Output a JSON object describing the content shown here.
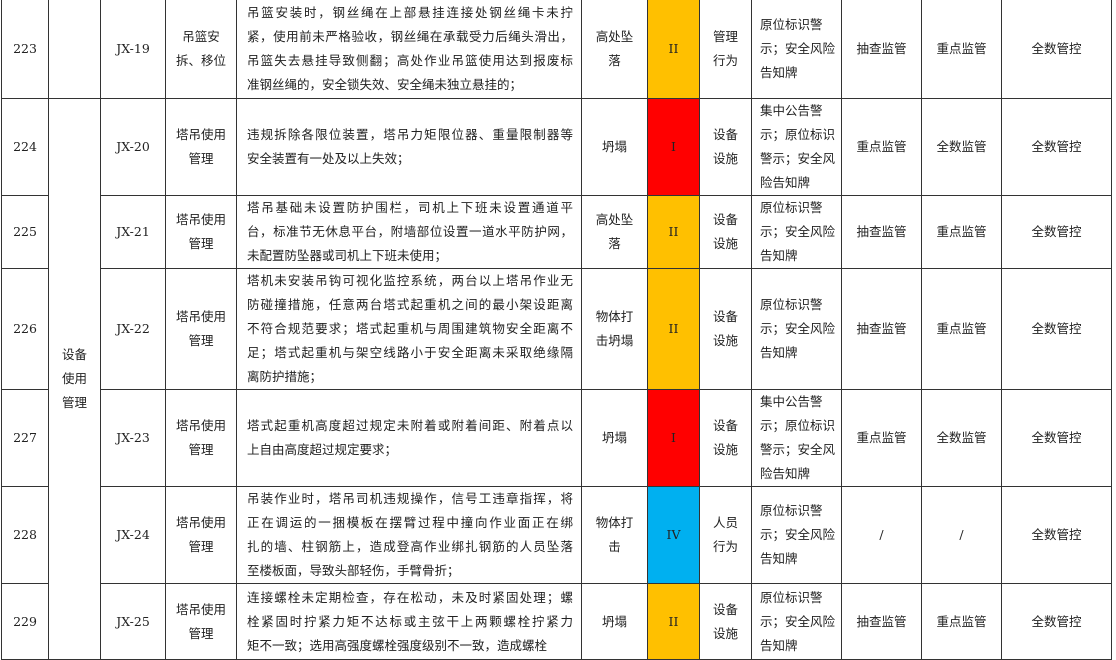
{
  "colors": {
    "level_I": "#FF0000",
    "level_II": "#FFC000",
    "level_IV": "#00B0F0"
  },
  "category": "设备使用管理",
  "rows": [
    {
      "no": "223",
      "code": "JX-19",
      "item": "吊篮安拆、移位",
      "desc": [
        "吊篮安装时，钢丝绳在上部悬挂连接处钢丝绳卡未拧",
        "紧，使用前未严格验收，钢丝绳在承载受力后绳头滑出，",
        "吊篮失去悬挂导致侧翻；高处作业吊篮使用达到报废标",
        "准钢丝绳的，安全锁失效、安全绳未独立悬挂的；"
      ],
      "accident": "高处坠落",
      "level": "II",
      "level_color": "#FFC000",
      "factor": "管理行为",
      "warning": "原位标识警示；安全风险告知牌",
      "c1": "抽查监管",
      "c2": "重点监管",
      "c3": "全数管控"
    },
    {
      "no": "224",
      "code": "JX-20",
      "item": "塔吊使用管理",
      "desc": [
        "违规拆除各限位装置，塔吊力矩限位器、重量限制器等",
        "安全装置有一处及以上失效；"
      ],
      "accident": "坍塌",
      "level": "I",
      "level_color": "#FF0000",
      "factor": "设备设施",
      "warning": "集中公告警示；原位标识警示；安全风险告知牌",
      "c1": "重点监管",
      "c2": "全数监管",
      "c3": "全数管控"
    },
    {
      "no": "225",
      "code": "JX-21",
      "item": "塔吊使用管理",
      "desc": [
        "塔吊基础未设置防护围栏，司机上下班未设置通道平",
        "台，标准节无休息平台，附墙部位设置一道水平防护网，",
        "未配置防坠器或司机上下班未使用；"
      ],
      "accident": "高处坠落",
      "level": "II",
      "level_color": "#FFC000",
      "factor": "设备设施",
      "warning": "原位标识警示；安全风险告知牌",
      "c1": "抽查监管",
      "c2": "重点监管",
      "c3": "全数管控"
    },
    {
      "no": "226",
      "code": "JX-22",
      "item": "塔吊使用管理",
      "desc": [
        "塔机未安装吊钩可视化监控系统，两台以上塔吊作业无",
        "防碰撞措施，任意两台塔式起重机之间的最小架设距离",
        "不符合规范要求；塔式起重机与周围建筑物安全距离不",
        "足；塔式起重机与架空线路小于安全距离未采取绝缘隔",
        "离防护措施；"
      ],
      "accident": "物体打击坍塌",
      "level": "II",
      "level_color": "#FFC000",
      "factor": "设备设施",
      "warning": "原位标识警示；安全风险告知牌",
      "c1": "抽查监管",
      "c2": "重点监管",
      "c3": "全数管控"
    },
    {
      "no": "227",
      "code": "JX-23",
      "item": "塔吊使用管理",
      "desc": [
        "塔式起重机高度超过规定未附着或附着间距、附着点以",
        "上自由高度超过规定要求；"
      ],
      "accident": "坍塌",
      "level": "I",
      "level_color": "#FF0000",
      "factor": "设备设施",
      "warning": "集中公告警示；原位标识警示；安全风险告知牌",
      "c1": "重点监管",
      "c2": "全数监管",
      "c3": "全数管控"
    },
    {
      "no": "228",
      "code": "JX-24",
      "item": "塔吊使用管理",
      "desc": [
        "吊装作业时，塔吊司机违规操作，信号工违章指挥，将",
        "正在调运的一捆模板在摆臂过程中撞向作业面正在绑",
        "扎的墙、柱钢筋上，造成登高作业绑扎钢筋的人员坠落",
        "至楼板面，导致头部轻伤，手臂骨折；"
      ],
      "accident": "物体打击",
      "level": "IV",
      "level_color": "#00B0F0",
      "factor": "人员行为",
      "warning": "原位标识警示；安全风险告知牌",
      "c1": "/",
      "c2": "/",
      "c3": "全数管控"
    },
    {
      "no": "229",
      "code": "JX-25",
      "item": "塔吊使用管理",
      "desc": [
        "连接螺栓未定期检查，存在松动，未及时紧固处理；螺",
        "栓紧固时拧紧力矩不达标或主弦干上两颗螺栓拧紧力",
        "矩不一致；选用高强度螺栓强度级别不一致，造成螺栓"
      ],
      "accident": "坍塌",
      "level": "II",
      "level_color": "#FFC000",
      "factor": "设备设施",
      "warning": "原位标识警示；安全风险告知牌",
      "c1": "抽查监管",
      "c2": "重点监管",
      "c3": "全数管控"
    }
  ]
}
